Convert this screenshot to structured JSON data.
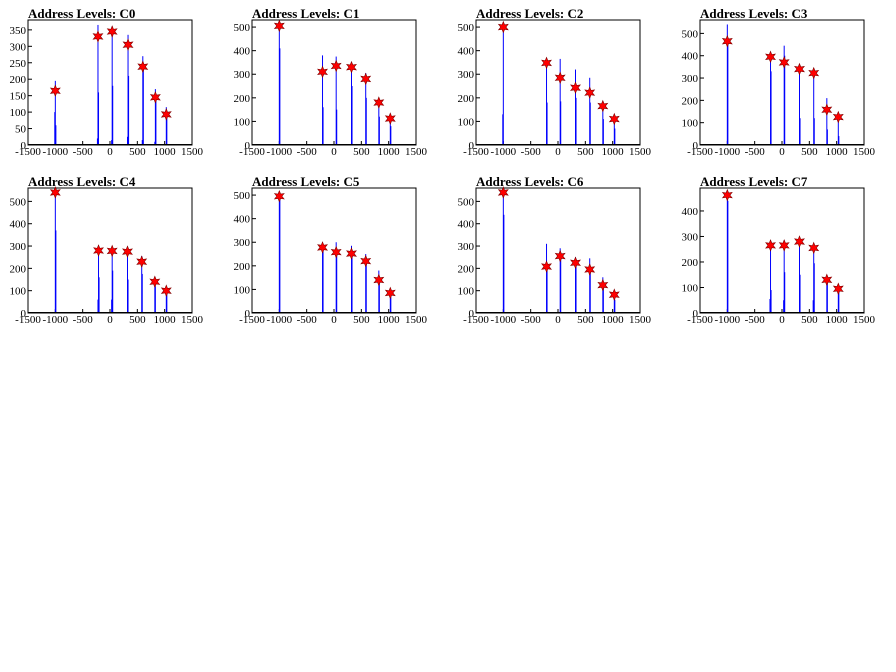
{
  "chart_data": [
    {
      "type": "bar",
      "title": "Address Levels: C0",
      "xlim": [
        -1500,
        1500
      ],
      "ylim": [
        0,
        380
      ],
      "xticks": [
        -1500,
        -1000,
        -500,
        0,
        500,
        1000,
        1500
      ],
      "yticks": [
        0,
        50,
        100,
        150,
        200,
        250,
        300,
        350
      ],
      "spikes": [
        {
          "x": -1000,
          "y": 195
        },
        {
          "x": -1010,
          "y": 100
        },
        {
          "x": -990,
          "y": 60
        },
        {
          "x": -220,
          "y": 365
        },
        {
          "x": -210,
          "y": 160
        },
        {
          "x": -230,
          "y": 20
        },
        {
          "x": 40,
          "y": 360
        },
        {
          "x": 50,
          "y": 180
        },
        {
          "x": 30,
          "y": 15
        },
        {
          "x": 330,
          "y": 335
        },
        {
          "x": 340,
          "y": 210
        },
        {
          "x": 320,
          "y": 25
        },
        {
          "x": 600,
          "y": 270
        },
        {
          "x": 610,
          "y": 240
        },
        {
          "x": 590,
          "y": 15
        },
        {
          "x": 830,
          "y": 170
        },
        {
          "x": 840,
          "y": 145
        },
        {
          "x": 820,
          "y": 10
        },
        {
          "x": 1030,
          "y": 115
        },
        {
          "x": 1040,
          "y": 90
        }
      ],
      "peaks": [
        {
          "x": -1000,
          "y": 165
        },
        {
          "x": -220,
          "y": 330
        },
        {
          "x": 40,
          "y": 345
        },
        {
          "x": 330,
          "y": 305
        },
        {
          "x": 600,
          "y": 238
        },
        {
          "x": 830,
          "y": 145
        },
        {
          "x": 1030,
          "y": 93
        }
      ]
    },
    {
      "type": "bar",
      "title": "Address Levels: C1",
      "xlim": [
        -1500,
        1500
      ],
      "ylim": [
        0,
        530
      ],
      "xticks": [
        -1500,
        -1000,
        -500,
        0,
        500,
        1000,
        1500
      ],
      "yticks": [
        0,
        100,
        200,
        300,
        400,
        500
      ],
      "spikes": [
        {
          "x": -1000,
          "y": 510
        },
        {
          "x": -990,
          "y": 410
        },
        {
          "x": -210,
          "y": 380
        },
        {
          "x": -200,
          "y": 160
        },
        {
          "x": 40,
          "y": 375
        },
        {
          "x": 50,
          "y": 150
        },
        {
          "x": 320,
          "y": 345
        },
        {
          "x": 330,
          "y": 250
        },
        {
          "x": 580,
          "y": 305
        },
        {
          "x": 590,
          "y": 200
        },
        {
          "x": 820,
          "y": 185
        },
        {
          "x": 830,
          "y": 120
        },
        {
          "x": 1030,
          "y": 120
        },
        {
          "x": 1040,
          "y": 80
        }
      ],
      "peaks": [
        {
          "x": -1000,
          "y": 505
        },
        {
          "x": -210,
          "y": 310
        },
        {
          "x": 40,
          "y": 335
        },
        {
          "x": 320,
          "y": 330
        },
        {
          "x": 580,
          "y": 280
        },
        {
          "x": 820,
          "y": 180
        },
        {
          "x": 1030,
          "y": 112
        }
      ]
    },
    {
      "type": "bar",
      "title": "Address Levels: C2",
      "xlim": [
        -1500,
        1500
      ],
      "ylim": [
        0,
        530
      ],
      "xticks": [
        -1500,
        -1000,
        -500,
        0,
        500,
        1000,
        1500
      ],
      "yticks": [
        0,
        100,
        200,
        300,
        400,
        500
      ],
      "spikes": [
        {
          "x": -1000,
          "y": 520
        },
        {
          "x": -1010,
          "y": 130
        },
        {
          "x": -210,
          "y": 370
        },
        {
          "x": -200,
          "y": 180
        },
        {
          "x": 40,
          "y": 365
        },
        {
          "x": 50,
          "y": 185
        },
        {
          "x": 320,
          "y": 320
        },
        {
          "x": 330,
          "y": 200
        },
        {
          "x": 580,
          "y": 285
        },
        {
          "x": 590,
          "y": 180
        },
        {
          "x": 820,
          "y": 175
        },
        {
          "x": 830,
          "y": 110
        },
        {
          "x": 1030,
          "y": 120
        },
        {
          "x": 1040,
          "y": 70
        }
      ],
      "peaks": [
        {
          "x": -1000,
          "y": 500
        },
        {
          "x": -210,
          "y": 348
        },
        {
          "x": 40,
          "y": 285
        },
        {
          "x": 320,
          "y": 243
        },
        {
          "x": 580,
          "y": 222
        },
        {
          "x": 820,
          "y": 165
        },
        {
          "x": 1030,
          "y": 110
        }
      ]
    },
    {
      "type": "bar",
      "title": "Address Levels: C3",
      "xlim": [
        -1500,
        1500
      ],
      "ylim": [
        0,
        560
      ],
      "xticks": [
        -1500,
        -1000,
        -500,
        0,
        500,
        1000,
        1500
      ],
      "yticks": [
        0,
        100,
        200,
        300,
        400,
        500
      ],
      "spikes": [
        {
          "x": -1000,
          "y": 540
        },
        {
          "x": -990,
          "y": 450
        },
        {
          "x": -210,
          "y": 385
        },
        {
          "x": -200,
          "y": 330
        },
        {
          "x": 40,
          "y": 445
        },
        {
          "x": 50,
          "y": 400
        },
        {
          "x": 320,
          "y": 355
        },
        {
          "x": 330,
          "y": 120
        },
        {
          "x": 580,
          "y": 330
        },
        {
          "x": 590,
          "y": 120
        },
        {
          "x": 820,
          "y": 210
        },
        {
          "x": 830,
          "y": 70
        },
        {
          "x": 1030,
          "y": 140
        },
        {
          "x": 1040,
          "y": 40
        }
      ],
      "peaks": [
        {
          "x": -1000,
          "y": 465
        },
        {
          "x": -210,
          "y": 395
        },
        {
          "x": 40,
          "y": 370
        },
        {
          "x": 320,
          "y": 340
        },
        {
          "x": 580,
          "y": 322
        },
        {
          "x": 820,
          "y": 158
        },
        {
          "x": 1030,
          "y": 125
        }
      ]
    },
    {
      "type": "bar",
      "title": "Address Levels: C4",
      "xlim": [
        -1500,
        1500
      ],
      "ylim": [
        0,
        560
      ],
      "xticks": [
        -1500,
        -1000,
        -500,
        0,
        500,
        1000,
        1500
      ],
      "yticks": [
        0,
        100,
        200,
        300,
        400,
        500
      ],
      "spikes": [
        {
          "x": -1000,
          "y": 550
        },
        {
          "x": -990,
          "y": 370
        },
        {
          "x": -210,
          "y": 285
        },
        {
          "x": -200,
          "y": 160
        },
        {
          "x": -220,
          "y": 60
        },
        {
          "x": 40,
          "y": 285
        },
        {
          "x": 50,
          "y": 190
        },
        {
          "x": 30,
          "y": 60
        },
        {
          "x": 320,
          "y": 285
        },
        {
          "x": 330,
          "y": 150
        },
        {
          "x": 580,
          "y": 255
        },
        {
          "x": 590,
          "y": 175
        },
        {
          "x": 820,
          "y": 150
        },
        {
          "x": 830,
          "y": 120
        },
        {
          "x": 1030,
          "y": 110
        },
        {
          "x": 1040,
          "y": 85
        }
      ],
      "peaks": [
        {
          "x": -1000,
          "y": 540
        },
        {
          "x": -210,
          "y": 280
        },
        {
          "x": 40,
          "y": 278
        },
        {
          "x": 320,
          "y": 275
        },
        {
          "x": 580,
          "y": 230
        },
        {
          "x": 820,
          "y": 140
        },
        {
          "x": 1030,
          "y": 100
        }
      ]
    },
    {
      "type": "bar",
      "title": "Address Levels: C5",
      "xlim": [
        -1500,
        1500
      ],
      "ylim": [
        0,
        530
      ],
      "xticks": [
        -1500,
        -1000,
        -500,
        0,
        500,
        1000,
        1500
      ],
      "yticks": [
        0,
        100,
        200,
        300,
        400,
        500
      ],
      "spikes": [
        {
          "x": -1000,
          "y": 510
        },
        {
          "x": -990,
          "y": 480
        },
        {
          "x": -210,
          "y": 290
        },
        {
          "x": -200,
          "y": 265
        },
        {
          "x": 40,
          "y": 300
        },
        {
          "x": 50,
          "y": 265
        },
        {
          "x": 320,
          "y": 285
        },
        {
          "x": 330,
          "y": 250
        },
        {
          "x": 580,
          "y": 250
        },
        {
          "x": 590,
          "y": 210
        },
        {
          "x": 820,
          "y": 180
        },
        {
          "x": 830,
          "y": 150
        },
        {
          "x": 1030,
          "y": 100
        },
        {
          "x": 1040,
          "y": 70
        }
      ],
      "peaks": [
        {
          "x": -1000,
          "y": 495
        },
        {
          "x": -210,
          "y": 278
        },
        {
          "x": 40,
          "y": 258
        },
        {
          "x": 320,
          "y": 252
        },
        {
          "x": 580,
          "y": 220
        },
        {
          "x": 820,
          "y": 140
        },
        {
          "x": 1030,
          "y": 85
        }
      ]
    },
    {
      "type": "bar",
      "title": "Address Levels: C6",
      "xlim": [
        -1500,
        1500
      ],
      "ylim": [
        0,
        560
      ],
      "xticks": [
        -1500,
        -1000,
        -500,
        0,
        500,
        1000,
        1500
      ],
      "yticks": [
        0,
        100,
        200,
        300,
        400,
        500
      ],
      "spikes": [
        {
          "x": -1000,
          "y": 560
        },
        {
          "x": -990,
          "y": 440
        },
        {
          "x": -210,
          "y": 310
        },
        {
          "x": -200,
          "y": 200
        },
        {
          "x": 40,
          "y": 290
        },
        {
          "x": 50,
          "y": 240
        },
        {
          "x": 320,
          "y": 250
        },
        {
          "x": 330,
          "y": 210
        },
        {
          "x": 580,
          "y": 245
        },
        {
          "x": 590,
          "y": 180
        },
        {
          "x": 820,
          "y": 160
        },
        {
          "x": 830,
          "y": 110
        },
        {
          "x": 1030,
          "y": 100
        },
        {
          "x": 1040,
          "y": 60
        }
      ],
      "peaks": [
        {
          "x": -1000,
          "y": 540
        },
        {
          "x": -210,
          "y": 208
        },
        {
          "x": 40,
          "y": 255
        },
        {
          "x": 320,
          "y": 225
        },
        {
          "x": 580,
          "y": 195
        },
        {
          "x": 820,
          "y": 125
        },
        {
          "x": 1030,
          "y": 82
        }
      ]
    },
    {
      "type": "bar",
      "title": "Address Levels: C7",
      "xlim": [
        -1500,
        1500
      ],
      "ylim": [
        0,
        490
      ],
      "xticks": [
        -1500,
        -1000,
        -500,
        0,
        500,
        1000,
        1500
      ],
      "yticks": [
        0,
        100,
        200,
        300,
        400
      ],
      "spikes": [
        {
          "x": -1000,
          "y": 465
        },
        {
          "x": -990,
          "y": 440
        },
        {
          "x": -210,
          "y": 275
        },
        {
          "x": -200,
          "y": 90
        },
        {
          "x": -220,
          "y": 55
        },
        {
          "x": 40,
          "y": 285
        },
        {
          "x": 50,
          "y": 160
        },
        {
          "x": 30,
          "y": 50
        },
        {
          "x": 320,
          "y": 290
        },
        {
          "x": 330,
          "y": 150
        },
        {
          "x": 580,
          "y": 265
        },
        {
          "x": 590,
          "y": 195
        },
        {
          "x": 570,
          "y": 50
        },
        {
          "x": 820,
          "y": 140
        },
        {
          "x": 830,
          "y": 120
        },
        {
          "x": 1030,
          "y": 100
        },
        {
          "x": 1040,
          "y": 85
        }
      ],
      "peaks": [
        {
          "x": -1000,
          "y": 462
        },
        {
          "x": -210,
          "y": 265
        },
        {
          "x": 40,
          "y": 265
        },
        {
          "x": 320,
          "y": 280
        },
        {
          "x": 580,
          "y": 255
        },
        {
          "x": 820,
          "y": 130
        },
        {
          "x": 1030,
          "y": 95
        }
      ]
    }
  ],
  "colors": {
    "spike": "#0000ff",
    "peak_marker": "#ff0000",
    "axis": "#000000",
    "background": "#ffffff"
  }
}
